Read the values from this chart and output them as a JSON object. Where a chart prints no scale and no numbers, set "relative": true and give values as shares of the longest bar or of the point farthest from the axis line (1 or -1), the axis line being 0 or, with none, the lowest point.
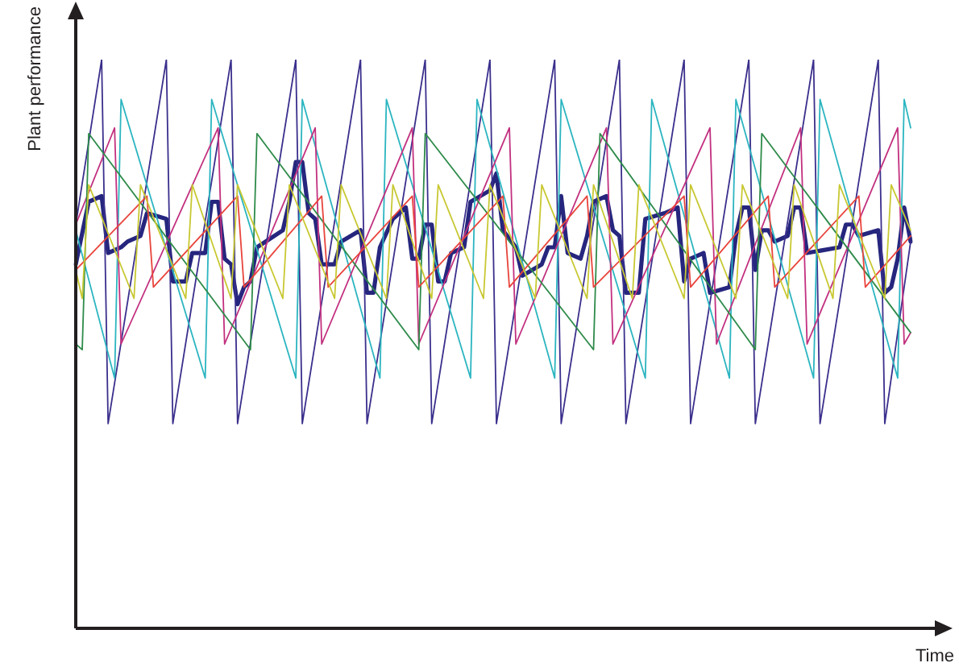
{
  "chart_data": {
    "type": "line",
    "relative": true,
    "xlabel": "Time",
    "ylabel": "Plant performance",
    "marker": "none",
    "line_style": "solid",
    "legend": false,
    "categories": [
      null,
      null,
      null,
      null,
      null,
      null,
      null,
      null,
      null,
      null,
      null,
      null,
      null,
      null,
      null,
      null,
      null,
      null,
      null,
      null,
      null,
      null,
      null,
      null,
      null,
      null,
      null,
      null,
      null,
      null,
      null,
      null,
      null,
      null,
      null,
      null,
      null,
      null,
      null,
      null,
      null,
      null,
      null,
      null,
      null,
      null,
      null,
      null,
      null,
      null,
      null,
      null,
      null,
      null,
      null,
      null,
      null,
      null,
      null,
      null,
      null,
      null,
      null,
      null,
      null,
      null,
      null,
      null,
      null,
      null,
      null,
      null,
      null,
      null,
      null,
      null,
      null,
      null,
      null,
      null,
      null,
      null,
      null,
      null,
      null,
      null,
      null,
      null,
      null,
      null,
      null,
      null,
      null,
      null,
      null,
      null,
      null,
      null,
      null,
      null,
      null,
      null,
      null,
      null,
      null,
      null,
      null,
      null,
      null,
      null,
      null,
      null,
      null,
      null,
      null,
      null,
      null,
      null,
      null,
      null,
      null,
      null,
      null,
      null,
      null,
      null,
      null,
      null,
      null,
      null
    ],
    "series": [
      {
        "color": "#c8c832",
        "values": [
          0.63,
          0.58,
          0.78,
          null,
          null,
          null,
          null,
          null,
          null,
          0.58,
          0.78,
          null,
          null,
          null,
          null,
          null,
          null,
          0.58,
          0.78,
          null,
          null,
          null,
          null,
          null,
          0.58,
          0.78,
          null,
          null,
          null,
          null,
          null,
          null,
          0.58,
          0.78,
          null,
          null,
          null,
          null,
          null,
          null,
          0.58,
          0.78,
          null,
          null,
          null,
          null,
          null,
          null,
          0.58,
          0.78,
          null,
          null,
          null,
          null,
          null,
          0.58,
          0.78,
          null,
          null,
          null,
          null,
          null,
          null,
          0.58,
          0.78,
          null,
          null,
          null,
          null,
          null,
          null,
          0.58,
          0.78,
          null,
          null,
          null,
          null,
          null,
          null,
          0.58,
          0.78,
          null,
          null,
          null,
          null,
          null,
          0.58,
          0.78,
          null,
          null,
          null,
          null,
          null,
          null,
          0.58,
          0.78,
          null,
          null,
          null,
          null,
          null,
          null,
          0.58,
          0.78,
          null,
          null,
          null,
          null,
          null,
          null,
          0.58,
          0.78,
          null,
          null,
          null,
          null,
          null,
          0.58,
          0.78,
          null,
          null,
          null,
          null,
          null,
          null,
          0.58,
          0.78,
          null,
          null,
          0.7
        ]
      },
      {
        "color": "#e8443c",
        "values": [
          0.63,
          null,
          null,
          null,
          null,
          null,
          null,
          null,
          null,
          null,
          null,
          0.76,
          0.6,
          null,
          null,
          null,
          null,
          null,
          null,
          null,
          null,
          null,
          null,
          null,
          null,
          0.76,
          0.6,
          null,
          null,
          null,
          null,
          null,
          null,
          null,
          null,
          null,
          null,
          null,
          0.76,
          0.6,
          null,
          null,
          null,
          null,
          null,
          null,
          null,
          null,
          null,
          null,
          null,
          null,
          0.76,
          0.6,
          null,
          null,
          null,
          null,
          null,
          null,
          null,
          null,
          null,
          null,
          null,
          null,
          0.76,
          0.6,
          null,
          null,
          null,
          null,
          null,
          null,
          null,
          null,
          null,
          null,
          null,
          0.76,
          0.6,
          null,
          null,
          null,
          null,
          null,
          null,
          null,
          null,
          null,
          null,
          null,
          null,
          null,
          0.76,
          0.6,
          null,
          null,
          null,
          null,
          null,
          null,
          null,
          null,
          null,
          null,
          null,
          0.76,
          0.6,
          null,
          null,
          null,
          null,
          null,
          null,
          null,
          null,
          null,
          null,
          null,
          null,
          0.76,
          0.6,
          null,
          null,
          null,
          null,
          null,
          null,
          0.69
        ]
      },
      {
        "color": "#2e8b4a",
        "values": [
          0.5,
          0.49,
          0.87,
          null,
          null,
          null,
          null,
          null,
          null,
          null,
          null,
          null,
          null,
          null,
          null,
          null,
          null,
          null,
          null,
          null,
          null,
          null,
          null,
          null,
          null,
          null,
          null,
          0.49,
          0.87,
          null,
          null,
          null,
          null,
          null,
          null,
          null,
          null,
          null,
          null,
          null,
          null,
          null,
          null,
          null,
          null,
          null,
          null,
          null,
          null,
          null,
          null,
          null,
          null,
          0.49,
          0.87,
          null,
          null,
          null,
          null,
          null,
          null,
          null,
          null,
          null,
          null,
          null,
          null,
          null,
          null,
          null,
          null,
          null,
          null,
          null,
          null,
          null,
          null,
          null,
          null,
          null,
          0.49,
          0.87,
          null,
          null,
          null,
          null,
          null,
          null,
          null,
          null,
          null,
          null,
          null,
          null,
          null,
          null,
          null,
          null,
          null,
          null,
          null,
          null,
          null,
          null,
          null,
          0.49,
          0.87,
          null,
          null,
          null,
          null,
          null,
          null,
          null,
          null,
          null,
          null,
          null,
          null,
          null,
          null,
          null,
          null,
          null,
          null,
          null,
          null,
          null,
          null,
          0.52
        ]
      },
      {
        "color": "#c2307f",
        "values": [
          0.71,
          null,
          null,
          null,
          null,
          null,
          0.88,
          0.5,
          null,
          null,
          null,
          null,
          null,
          null,
          null,
          null,
          null,
          null,
          null,
          null,
          null,
          null,
          0.88,
          0.5,
          null,
          null,
          null,
          null,
          null,
          null,
          null,
          null,
          null,
          null,
          null,
          null,
          null,
          0.88,
          0.5,
          null,
          null,
          null,
          null,
          null,
          null,
          null,
          null,
          null,
          null,
          null,
          null,
          null,
          0.88,
          0.5,
          null,
          null,
          null,
          null,
          null,
          null,
          null,
          null,
          null,
          null,
          null,
          null,
          null,
          0.88,
          0.5,
          null,
          null,
          null,
          null,
          null,
          null,
          null,
          null,
          null,
          null,
          null,
          null,
          null,
          0.88,
          0.5,
          null,
          null,
          null,
          null,
          null,
          null,
          null,
          null,
          null,
          null,
          null,
          null,
          null,
          null,
          0.88,
          0.5,
          null,
          null,
          null,
          null,
          null,
          null,
          null,
          null,
          null,
          null,
          null,
          null,
          0.88,
          0.5,
          null,
          null,
          null,
          null,
          null,
          null,
          null,
          null,
          null,
          null,
          null,
          null,
          null,
          0.88,
          0.5,
          0.52
        ]
      },
      {
        "color": "#2bb5c0",
        "values": [
          0.7,
          null,
          null,
          null,
          null,
          null,
          0.44,
          0.93,
          null,
          null,
          null,
          null,
          null,
          null,
          null,
          null,
          null,
          null,
          null,
          null,
          0.44,
          0.93,
          null,
          null,
          null,
          null,
          null,
          null,
          null,
          null,
          null,
          null,
          null,
          null,
          0.44,
          0.93,
          null,
          null,
          null,
          null,
          null,
          null,
          null,
          null,
          null,
          null,
          null,
          0.44,
          0.93,
          null,
          null,
          null,
          null,
          null,
          null,
          null,
          null,
          null,
          null,
          null,
          null,
          0.44,
          0.93,
          null,
          null,
          null,
          null,
          null,
          null,
          null,
          null,
          null,
          null,
          null,
          0.44,
          0.93,
          null,
          null,
          null,
          null,
          null,
          null,
          null,
          null,
          null,
          null,
          null,
          null,
          0.44,
          0.93,
          null,
          null,
          null,
          null,
          null,
          null,
          null,
          null,
          null,
          null,
          null,
          0.44,
          0.93,
          null,
          null,
          null,
          null,
          null,
          null,
          null,
          null,
          null,
          null,
          null,
          0.44,
          0.93,
          null,
          null,
          null,
          null,
          null,
          null,
          null,
          null,
          null,
          null,
          null,
          0.44,
          0.93,
          0.88
        ]
      },
      {
        "color": "#3a2f8c",
        "values": [
          0.71,
          null,
          null,
          null,
          1,
          0.36,
          null,
          null,
          null,
          null,
          null,
          null,
          null,
          null,
          1,
          0.36,
          null,
          null,
          null,
          null,
          null,
          null,
          null,
          null,
          1,
          0.36,
          null,
          null,
          null,
          null,
          null,
          null,
          null,
          null,
          1,
          0.36,
          null,
          null,
          null,
          null,
          null,
          null,
          null,
          null,
          1,
          0.36,
          null,
          null,
          null,
          null,
          null,
          null,
          null,
          null,
          1,
          0.36,
          null,
          null,
          null,
          null,
          null,
          null,
          null,
          null,
          1,
          0.36,
          null,
          null,
          null,
          null,
          null,
          null,
          null,
          null,
          1,
          0.36,
          null,
          null,
          null,
          null,
          null,
          null,
          null,
          null,
          1,
          0.36,
          null,
          null,
          null,
          null,
          null,
          null,
          null,
          null,
          1,
          0.36,
          null,
          null,
          null,
          null,
          null,
          null,
          null,
          null,
          1,
          0.36,
          null,
          null,
          null,
          null,
          null,
          null,
          null,
          null,
          1,
          0.36,
          null,
          null,
          null,
          null,
          null,
          null,
          null,
          null,
          1,
          0.36,
          null,
          null,
          null,
          0.68
        ]
      },
      {
        "color": "#26267e",
        "values": [
          0.64,
          null,
          0.75,
          null,
          0.76,
          0.66,
          null,
          0.67,
          0.68,
          null,
          0.69,
          0.73,
          null,
          null,
          0.72,
          0.61,
          null,
          0.61,
          0.66,
          null,
          0.66,
          0.75,
          0.75,
          0.65,
          0.64,
          0.57,
          0.6,
          0.61,
          0.67,
          null,
          null,
          null,
          0.7,
          0.75,
          0.82,
          0.82,
          0.73,
          0.72,
          0.64,
          null,
          0.64,
          0.68,
          null,
          null,
          0.7,
          0.59,
          0.59,
          0.67,
          null,
          0.72,
          null,
          0.74,
          0.65,
          0.65,
          0.71,
          0.71,
          0.61,
          0.61,
          0.66,
          null,
          0.67,
          0.75,
          null,
          null,
          0.77,
          0.8,
          0.7,
          null,
          0.67,
          0.62,
          null,
          null,
          0.64,
          0.67,
          0.67,
          0.76,
          0.66,
          null,
          0.65,
          0.69,
          0.75,
          null,
          0.76,
          0.7,
          0.69,
          0.59,
          null,
          0.59,
          0.72,
          null,
          null,
          0.73,
          null,
          0.74,
          0.61,
          0.65,
          null,
          0.66,
          0.59,
          null,
          null,
          0.6,
          0.69,
          0.74,
          0.74,
          0.63,
          0.7,
          0.7,
          0.68,
          null,
          0.69,
          0.74,
          0.74,
          0.66,
          null,
          null,
          null,
          null,
          0.67,
          0.71,
          0.71,
          0.69,
          null,
          null,
          0.7,
          0.59,
          0.6,
          0.65,
          0.74,
          0.68
        ]
      }
    ]
  }
}
